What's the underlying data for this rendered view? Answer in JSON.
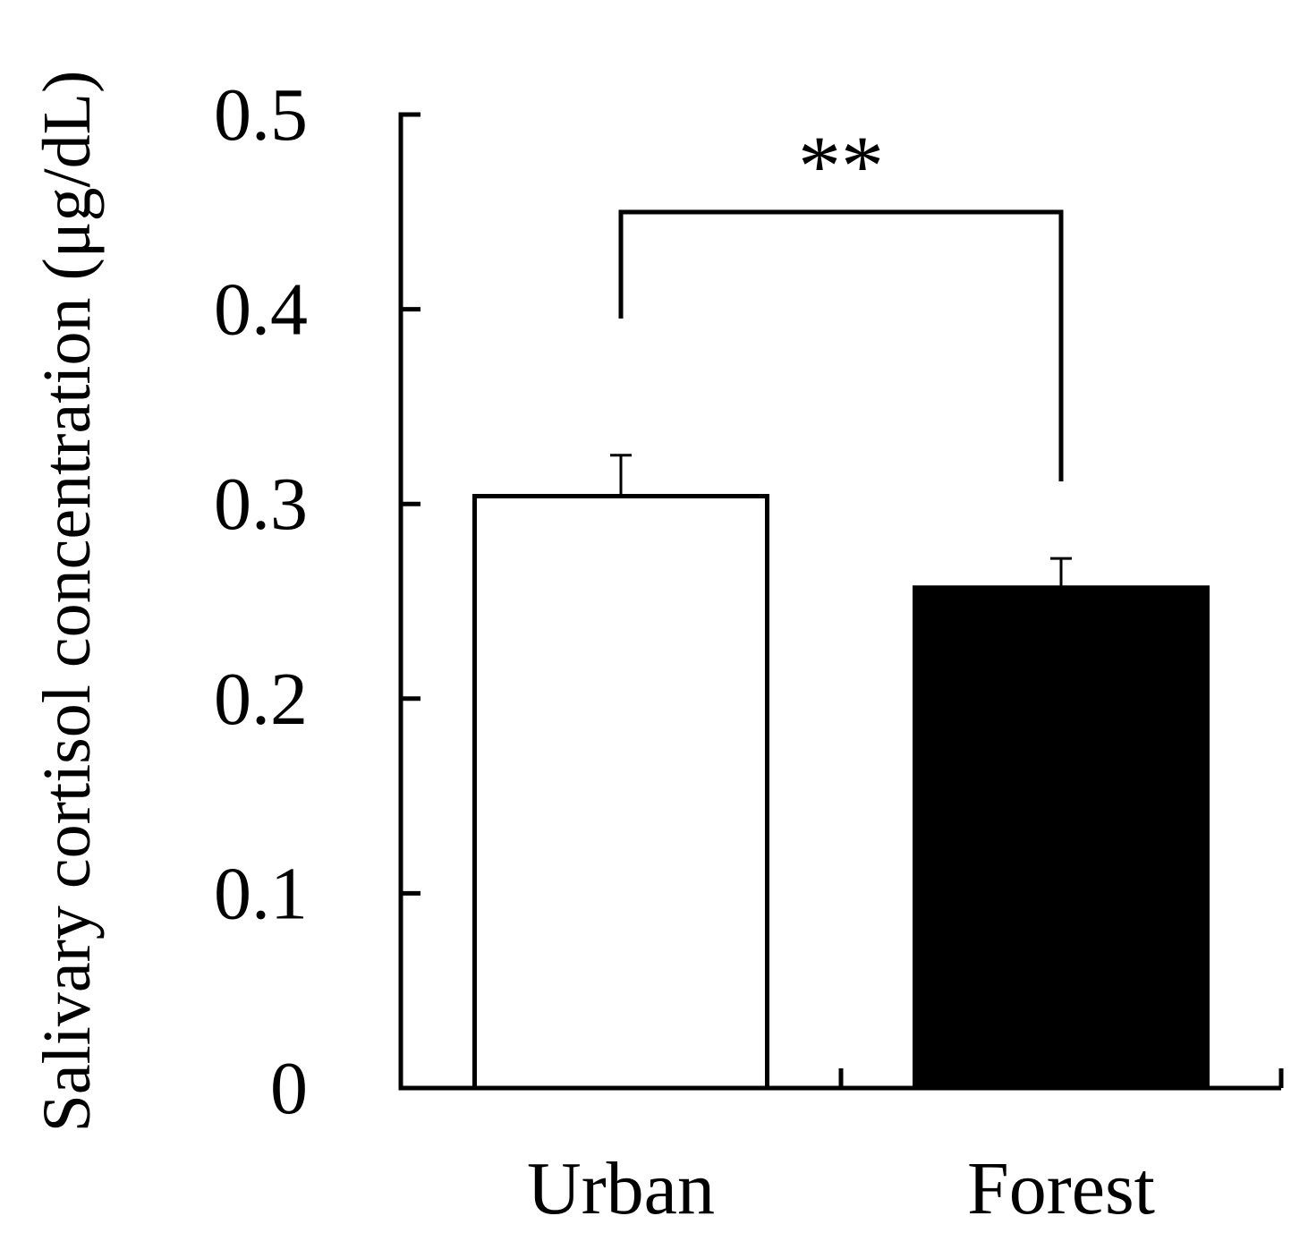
{
  "chart_data": {
    "type": "bar",
    "title": "",
    "xlabel": "",
    "ylabel": "Salivary cortisol concentration (μg/dL)",
    "ylim": [
      0,
      0.5
    ],
    "yticks": [
      0,
      0.1,
      0.2,
      0.3,
      0.4,
      0.5
    ],
    "ytick_labels": [
      "0",
      "0.1",
      "0.2",
      "0.3",
      "0.4",
      "0.5"
    ],
    "categories": [
      "Urban",
      "Forest"
    ],
    "values": [
      0.304,
      0.257
    ],
    "errors": [
      0.021,
      0.015
    ],
    "bar_colors": [
      "#ffffff",
      "#000000"
    ],
    "bar_edge_color": "#000000",
    "grid": false,
    "significance": {
      "between": [
        "Urban",
        "Forest"
      ],
      "label": "**"
    }
  }
}
